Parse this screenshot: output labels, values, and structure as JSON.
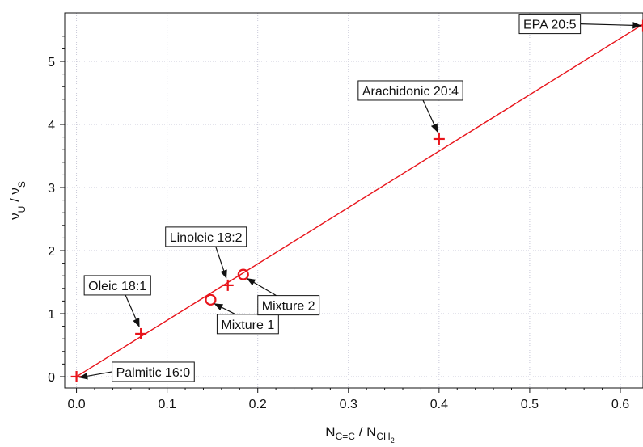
{
  "chart_data": {
    "type": "scatter",
    "xlabel": {
      "main": "N",
      "sub1": "C=C",
      "sep": " / ",
      "main2": "N",
      "sub2": "CH",
      "subsub2": "2"
    },
    "ylabel": {
      "main": "ν",
      "sub1": "U",
      "sep": " / ",
      "main2": "ν",
      "sub2": "S"
    },
    "xlim": [
      -0.013,
      0.625
    ],
    "ylim": [
      -0.18,
      5.77
    ],
    "xticks": [
      0.0,
      0.1,
      0.2,
      0.3,
      0.4,
      0.5,
      0.6
    ],
    "xtick_labels": [
      "0.0",
      "0.1",
      "0.2",
      "0.3",
      "0.4",
      "0.5",
      "0.6"
    ],
    "yticks": [
      0,
      1,
      2,
      3,
      4,
      5
    ],
    "ytick_labels": [
      "0",
      "1",
      "2",
      "3",
      "4",
      "5"
    ],
    "grid": true,
    "colors": {
      "series": "#e8141b",
      "grid": "#c8c8d8",
      "axis": "#111111"
    },
    "fit_line": {
      "x": [
        0.0,
        0.625
      ],
      "y": [
        0.0,
        5.59
      ]
    },
    "series": [
      {
        "marker": "plus",
        "x": [
          0.0,
          0.071,
          0.167,
          0.4,
          0.625
        ],
        "y": [
          0.0,
          0.68,
          1.45,
          3.77,
          5.57
        ]
      },
      {
        "marker": "circle",
        "x": [
          0.148,
          0.184
        ],
        "y": [
          1.22,
          1.62
        ]
      }
    ],
    "annotations": [
      {
        "text": "Palmitic 16:0",
        "x": 0.0,
        "y": 0.0,
        "anchor": "right-below"
      },
      {
        "text": "Oleic 18:1",
        "x": 0.071,
        "y": 0.68,
        "anchor": "above-left"
      },
      {
        "text": "Linoleic 18:2",
        "x": 0.167,
        "y": 1.45,
        "anchor": "above-left"
      },
      {
        "text": "Mixture 1",
        "x": 0.148,
        "y": 1.22,
        "anchor": "below-right"
      },
      {
        "text": "Mixture 2",
        "x": 0.184,
        "y": 1.62,
        "anchor": "below-right"
      },
      {
        "text": "Arachidonic 20:4",
        "x": 0.4,
        "y": 3.77,
        "anchor": "above-left"
      },
      {
        "text": "EPA 20:5",
        "x": 0.625,
        "y": 5.57,
        "anchor": "left"
      }
    ]
  }
}
